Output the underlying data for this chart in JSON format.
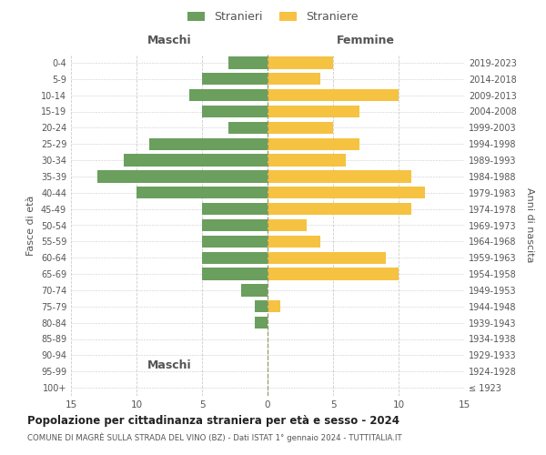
{
  "age_groups": [
    "100+",
    "95-99",
    "90-94",
    "85-89",
    "80-84",
    "75-79",
    "70-74",
    "65-69",
    "60-64",
    "55-59",
    "50-54",
    "45-49",
    "40-44",
    "35-39",
    "30-34",
    "25-29",
    "20-24",
    "15-19",
    "10-14",
    "5-9",
    "0-4"
  ],
  "birth_years": [
    "≤ 1923",
    "1924-1928",
    "1929-1933",
    "1934-1938",
    "1939-1943",
    "1944-1948",
    "1949-1953",
    "1954-1958",
    "1959-1963",
    "1964-1968",
    "1969-1973",
    "1974-1978",
    "1979-1983",
    "1984-1988",
    "1989-1993",
    "1994-1998",
    "1999-2003",
    "2004-2008",
    "2009-2013",
    "2014-2018",
    "2019-2023"
  ],
  "males": [
    0,
    0,
    0,
    0,
    1,
    1,
    2,
    5,
    5,
    5,
    5,
    5,
    10,
    13,
    11,
    9,
    3,
    5,
    6,
    5,
    3
  ],
  "females": [
    0,
    0,
    0,
    0,
    0,
    1,
    0,
    10,
    9,
    4,
    3,
    11,
    12,
    11,
    6,
    7,
    5,
    7,
    10,
    4,
    5
  ],
  "male_color": "#6a9f5e",
  "female_color": "#f5c242",
  "title": "Popolazione per cittadinanza straniera per età e sesso - 2024",
  "subtitle": "COMUNE DI MAGRÈ SULLA STRADA DEL VINO (BZ) - Dati ISTAT 1° gennaio 2024 - TUTTITALIA.IT",
  "xlabel_left": "Maschi",
  "xlabel_right": "Femmine",
  "ylabel_left": "Fasce di età",
  "ylabel_right": "Anni di nascita",
  "legend_male": "Stranieri",
  "legend_female": "Straniere",
  "xlim": 15,
  "background_color": "#ffffff",
  "grid_color": "#cccccc",
  "text_color": "#555555"
}
